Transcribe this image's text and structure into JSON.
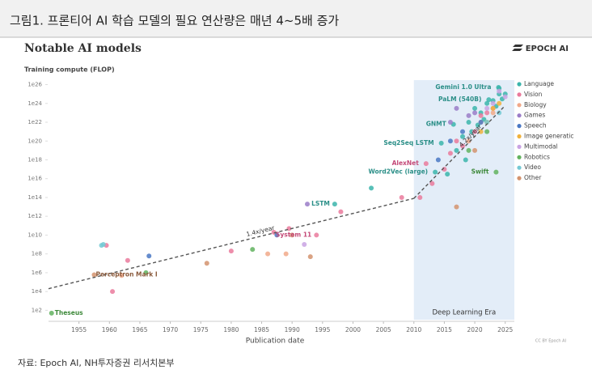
{
  "header": {
    "title": "그림1. 프론티어 AI 학습 모델의 필요 연산량은 매년 4~5배 증가"
  },
  "source": "자료: Epoch AI, NH투자증권 리서치본부",
  "chart_data": {
    "type": "scatter",
    "title": "Notable AI models",
    "brand": "EPOCH AI",
    "ylabel": "Training compute (FLOP)",
    "xlabel": "Publication date",
    "credit": "CC BY Epoch AI",
    "log_y": true,
    "xlim": [
      1950,
      2026.5
    ],
    "ylim": [
      10.0,
      3e+26
    ],
    "xticks": [
      1955,
      1960,
      1965,
      1970,
      1975,
      1980,
      1985,
      1990,
      1995,
      2000,
      2005,
      2010,
      2015,
      2020,
      2025
    ],
    "yticks": [
      {
        "value": 100.0,
        "label": "1e2"
      },
      {
        "value": 10000.0,
        "label": "1e4"
      },
      {
        "value": 1000000.0,
        "label": "1e6"
      },
      {
        "value": 100000000.0,
        "label": "1e8"
      },
      {
        "value": 10000000000.0,
        "label": "1e10"
      },
      {
        "value": 1000000000000.0,
        "label": "1e12"
      },
      {
        "value": 100000000000000.0,
        "label": "1e14"
      },
      {
        "value": 1e+16,
        "label": "1e16"
      },
      {
        "value": 1e+18,
        "label": "1e18"
      },
      {
        "value": 1e+20,
        "label": "1e20"
      },
      {
        "value": 1e+22,
        "label": "1e22"
      },
      {
        "value": 1e+24,
        "label": "1e24"
      },
      {
        "value": 1e+26,
        "label": "1e26"
      }
    ],
    "era": {
      "label": "Deep Learning Era",
      "start": 2010,
      "color": "#dce8f6"
    },
    "trends": [
      {
        "label": "1.4x/year",
        "x": [
          1950,
          2010
        ],
        "values": [
          20000.0,
          80000000000000.0
        ]
      },
      {
        "label": "4.2x/year",
        "x": [
          2010,
          2025
        ],
        "values": [
          80000000000000.0,
          6e+23
        ]
      }
    ],
    "series": [
      {
        "name": "Language",
        "color": "#3bb5ac",
        "x": [
          1997,
          2013.5,
          2014.5,
          2016.5,
          2022.3,
          2023.9,
          2003,
          2017,
          2018,
          2019,
          2020,
          2021,
          2022,
          2023,
          2024,
          2024.5,
          2025,
          2019.5,
          2020.5,
          2021.5,
          2023.5,
          2018.5,
          2015.5,
          2024
        ],
        "values": [
          20000000000000.0,
          5e+16,
          6e+19,
          6e+21,
          2.5e+24,
          5e+25,
          1000000000000000.0,
          1e+19,
          3e+20,
          1e+22,
          3e+23,
          1e+23,
          1e+24,
          2e+24,
          1e+25,
          3e+24,
          1e+25,
          1e+21,
          5e+21,
          2e+22,
          5e+23,
          1e+18,
          3e+16,
          4e+25
        ]
      },
      {
        "name": "Vision",
        "color": "#ea7a9c",
        "x": [
          2012,
          1959.5,
          1960.5,
          1963,
          1980,
          1987,
          1989.5,
          1994,
          1998,
          2008,
          2011,
          2013,
          2015,
          2016,
          2017,
          2018,
          2020,
          2021,
          2022,
          2023
        ],
        "values": [
          4e+17,
          800000000.0,
          10000.0,
          20000000.0,
          200000000.0,
          20000000000.0,
          50000000000.0,
          10000000000.0,
          3000000000000.0,
          100000000000000.0,
          100000000000000.0,
          3000000000000000.0,
          1e+17,
          5e+18,
          1e+20,
          3e+19,
          1e+21,
          5e+22,
          1e+23,
          3e+23
        ]
      },
      {
        "name": "Biology",
        "color": "#f1a98a",
        "x": [
          1962,
          1986,
          1989,
          2019,
          2021,
          2023
        ],
        "values": [
          500000.0,
          100000000.0,
          100000000.0,
          1e+20,
          1e+22,
          1e+23
        ]
      },
      {
        "name": "Games",
        "color": "#9a7cc8",
        "x": [
          1992.5,
          2016,
          2017,
          2019,
          2020
        ],
        "values": [
          20000000000000.0,
          1e+22,
          3e+23,
          5e+22,
          1e+23
        ]
      },
      {
        "name": "Speech",
        "color": "#4a78c4",
        "x": [
          1966.5,
          1987.5,
          2014,
          2016,
          2018,
          2021
        ],
        "values": [
          60000000.0,
          10000000000.0,
          1e+18,
          1e+20,
          1e+21,
          1e+22
        ]
      },
      {
        "name": "Image generatic",
        "color": "#f0b23c",
        "x": [
          2021,
          2022,
          2023,
          2024
        ],
        "values": [
          1e+21,
          1e+22,
          3e+23,
          1e+24
        ]
      },
      {
        "name": "Multimodal",
        "color": "#c9a3e3",
        "x": [
          1992,
          2022,
          2023,
          2024,
          2025
        ],
        "values": [
          1000000000.0,
          3e+23,
          1e+24,
          2e+25,
          5e+24
        ]
      },
      {
        "name": "Robotics",
        "color": "#62b35f",
        "x": [
          1950.5,
          1966,
          1983.5,
          2023.5,
          2019,
          2022
        ],
        "values": [
          50.0,
          1000000.0,
          300000000.0,
          5e+16,
          1e+19,
          1e+21
        ]
      },
      {
        "name": "Video",
        "color": "#74c9d4",
        "x": [
          1959,
          1958.7,
          2022,
          2024
        ],
        "values": [
          1000000000.0,
          800000000.0,
          1e+22,
          1e+23
        ]
      },
      {
        "name": "Other",
        "color": "#d4936e",
        "x": [
          1957.5,
          1976,
          1993,
          1990,
          2017,
          2020
        ],
        "values": [
          600000.0,
          10000000.0,
          50000000.0,
          10000000000.0,
          10000000000000.0,
          1e+19
        ]
      }
    ],
    "annotations": [
      {
        "text": "Theseus",
        "x": 1950.5,
        "y": 50.0,
        "color": "#3f8a3c"
      },
      {
        "text": "Perceptron Mark I",
        "x": 1957.5,
        "y": 600000.0,
        "color": "#8a5a3c"
      },
      {
        "text": "System 11",
        "x": 1994,
        "y": 10000000000.0,
        "color": "#c44a78"
      },
      {
        "text": "LSTM",
        "x": 1997,
        "y": 20000000000000.0,
        "color": "#2b8f88"
      },
      {
        "text": "AlexNet",
        "x": 2012,
        "y": 4e+17,
        "color": "#c44a78"
      },
      {
        "text": "Word2Vec (large)",
        "x": 2013.5,
        "y": 5e+16,
        "color": "#2b8f88"
      },
      {
        "text": "Seq2Seq LSTM",
        "x": 2014.5,
        "y": 6e+19,
        "color": "#2b8f88"
      },
      {
        "text": "GNMT",
        "x": 2016.5,
        "y": 6e+21,
        "color": "#2b8f88"
      },
      {
        "text": "Swift",
        "x": 2023.5,
        "y": 5e+16,
        "color": "#3f8a3c"
      },
      {
        "text": "PaLM (540B)",
        "x": 2022.3,
        "y": 2.5e+24,
        "color": "#2b8f88"
      },
      {
        "text": "Gemini 1.0 Ultra",
        "x": 2023.9,
        "y": 5e+25,
        "color": "#2b8f88"
      }
    ]
  }
}
